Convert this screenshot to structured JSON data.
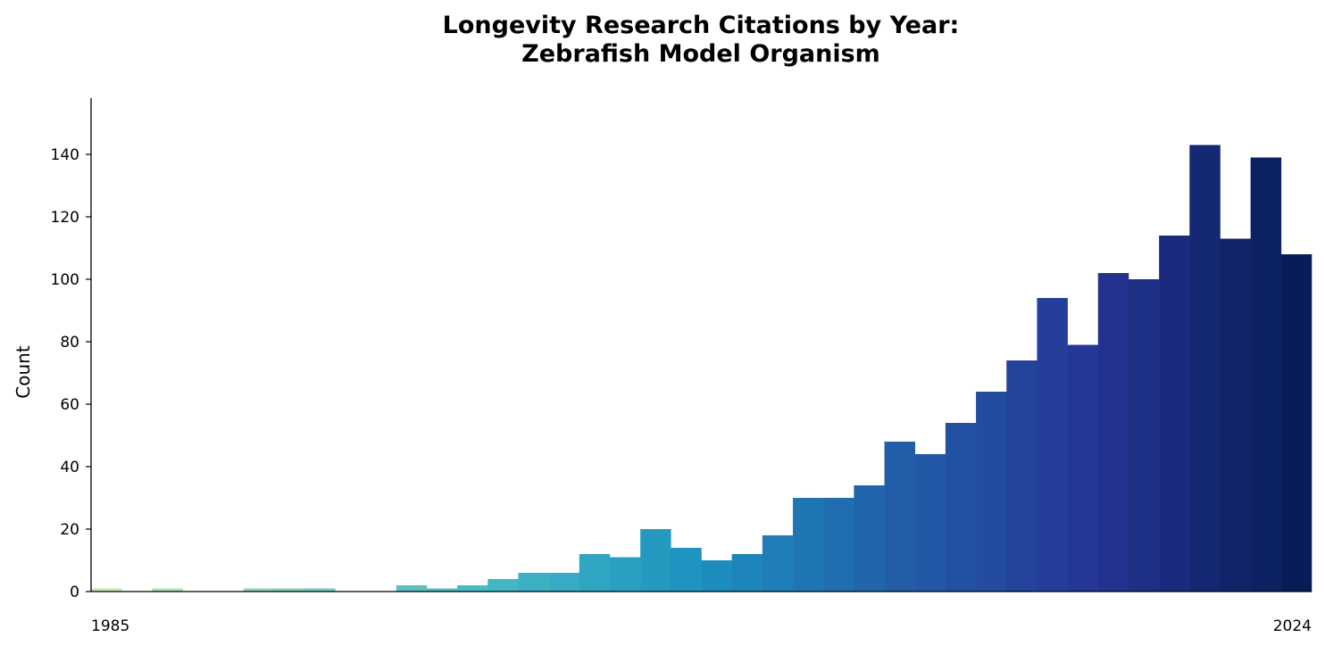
{
  "chart_data": {
    "type": "bar",
    "title": "Longevity Research Citations by Year:\nZebrafish Model Organism",
    "xlabel": "",
    "ylabel": "Count",
    "x_tick_labels": [
      "1985",
      "2024"
    ],
    "ylim": [
      0,
      158
    ],
    "y_ticks": [
      0,
      20,
      40,
      60,
      80,
      100,
      120,
      140
    ],
    "grid": false,
    "legend": "none",
    "categories": [
      1985,
      1986,
      1987,
      1988,
      1989,
      1990,
      1991,
      1992,
      1993,
      1994,
      1995,
      1996,
      1997,
      1998,
      1999,
      2000,
      2001,
      2002,
      2003,
      2004,
      2005,
      2006,
      2007,
      2008,
      2009,
      2010,
      2011,
      2012,
      2013,
      2014,
      2015,
      2016,
      2017,
      2018,
      2019,
      2020,
      2021,
      2022,
      2023,
      2024
    ],
    "values": [
      1,
      0,
      1,
      0,
      0,
      1,
      1,
      1,
      0,
      0,
      2,
      1,
      2,
      4,
      6,
      6,
      12,
      11,
      20,
      14,
      10,
      12,
      18,
      30,
      30,
      34,
      48,
      44,
      54,
      64,
      74,
      94,
      79,
      102,
      100,
      114,
      143,
      113,
      139,
      108
    ],
    "colors": {
      "palette": [
        "#c7e9b4",
        "#7fcdbb",
        "#41b6c4",
        "#1d91c0",
        "#225ea8",
        "#253494",
        "#081d58"
      ]
    }
  }
}
